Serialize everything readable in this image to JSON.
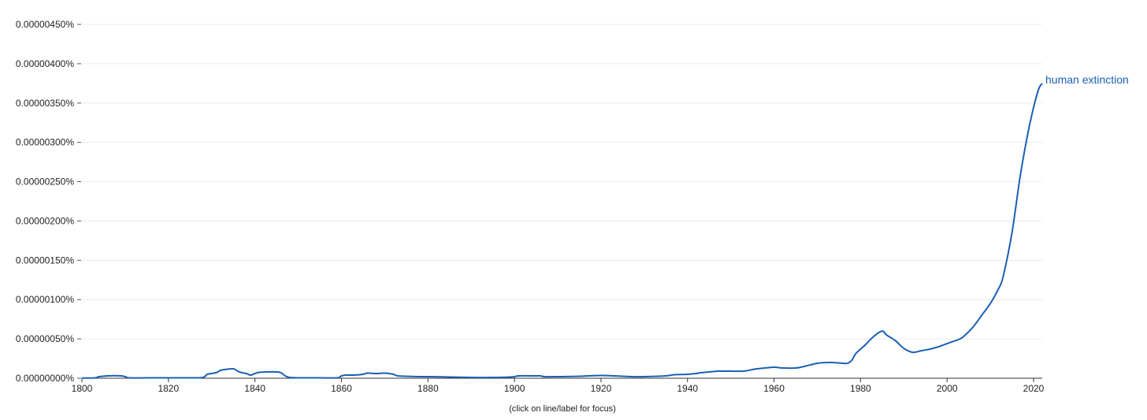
{
  "chart_data": {
    "type": "line",
    "title": "",
    "xlabel": "",
    "ylabel": "",
    "xlim": [
      1800,
      2022
    ],
    "ylim": [
      0,
      4.5e-08
    ],
    "grid": true,
    "x_ticks": [
      1800,
      1820,
      1840,
      1860,
      1880,
      1900,
      1920,
      1940,
      1960,
      1980,
      2000,
      2020
    ],
    "y_ticks": [
      0,
      5e-09,
      1e-08,
      1.5e-08,
      2e-08,
      2.5e-08,
      3e-08,
      3.5e-08,
      4e-08,
      4.5e-08
    ],
    "x_tick_labels": [
      "1800",
      "1820",
      "1840",
      "1860",
      "1880",
      "1900",
      "1920",
      "1940",
      "1960",
      "1980",
      "2000",
      "2020"
    ],
    "y_tick_labels": [
      "0.00000000%",
      "0.00000050%",
      "0.00000100%",
      "0.00000150%",
      "0.00000200%",
      "0.00000250%",
      "0.00000300%",
      "0.00000350%",
      "0.00000400%",
      "0.00000450%"
    ],
    "series": [
      {
        "name": "human extinction",
        "color": "#1a5fb4",
        "x": [
          1800,
          1803,
          1804,
          1806,
          1809,
          1810,
          1811,
          1815,
          1820,
          1825,
          1828,
          1829,
          1831,
          1832,
          1833,
          1835,
          1836,
          1837,
          1838,
          1839,
          1840,
          1841,
          1843,
          1845,
          1846,
          1847,
          1848,
          1850,
          1855,
          1859,
          1860,
          1861,
          1863,
          1865,
          1866,
          1868,
          1870,
          1871,
          1872,
          1873,
          1875,
          1878,
          1880,
          1885,
          1890,
          1895,
          1899,
          1900,
          1901,
          1905,
          1906,
          1907,
          1910,
          1915,
          1920,
          1925,
          1927,
          1930,
          1935,
          1937,
          1940,
          1942,
          1943,
          1945,
          1947,
          1950,
          1953,
          1955,
          1956,
          1957,
          1960,
          1962,
          1965,
          1967,
          1970,
          1973,
          1976,
          1977,
          1978,
          1979,
          1981,
          1983,
          1985,
          1986,
          1988,
          1990,
          1992,
          1994,
          1996,
          1998,
          1999,
          2001,
          2003,
          2004,
          2006,
          2008,
          2010,
          2012,
          2013,
          2015,
          2017,
          2019,
          2021,
          2022
        ],
        "y": [
          2e-11,
          5e-11,
          2e-10,
          3e-10,
          3e-10,
          2e-10,
          5e-11,
          5e-11,
          5e-11,
          5e-11,
          1e-10,
          5e-10,
          7e-10,
          1e-09,
          1.1e-09,
          1.2e-09,
          9e-10,
          7e-10,
          6e-10,
          4e-10,
          6e-10,
          7.5e-10,
          8e-10,
          8e-10,
          7e-10,
          3e-10,
          1e-10,
          5e-11,
          5e-11,
          5e-11,
          3e-10,
          4e-10,
          4e-10,
          5e-10,
          6.5e-10,
          6e-10,
          6.5e-10,
          6e-10,
          5e-10,
          3e-10,
          2.5e-10,
          2e-10,
          2e-10,
          1.5e-10,
          1e-10,
          1e-10,
          1.5e-10,
          2e-10,
          3e-10,
          3e-10,
          3e-10,
          2e-10,
          2e-10,
          2.5e-10,
          3.5e-10,
          2.5e-10,
          2e-10,
          2e-10,
          3e-10,
          4.5e-10,
          5e-10,
          6e-10,
          7e-10,
          8e-10,
          9e-10,
          9e-10,
          9e-10,
          1.1e-09,
          1.2e-09,
          1.25e-09,
          1.4e-09,
          1.3e-09,
          1.3e-09,
          1.5e-09,
          1.9e-09,
          2e-09,
          1.9e-09,
          1.9e-09,
          2.3e-09,
          3.2e-09,
          4.2e-09,
          5.3e-09,
          6e-09,
          5.5e-09,
          4.8e-09,
          3.8e-09,
          3.3e-09,
          3.5e-09,
          3.7e-09,
          4e-09,
          4.2e-09,
          4.6e-09,
          5e-09,
          5.4e-09,
          6.5e-09,
          8e-09,
          9.5e-09,
          1.15e-08,
          1.3e-08,
          1.85e-08,
          2.6e-08,
          3.2e-08,
          3.65e-08,
          3.75e-08
        ]
      }
    ]
  },
  "hint_text": "(click on line/label for focus)"
}
